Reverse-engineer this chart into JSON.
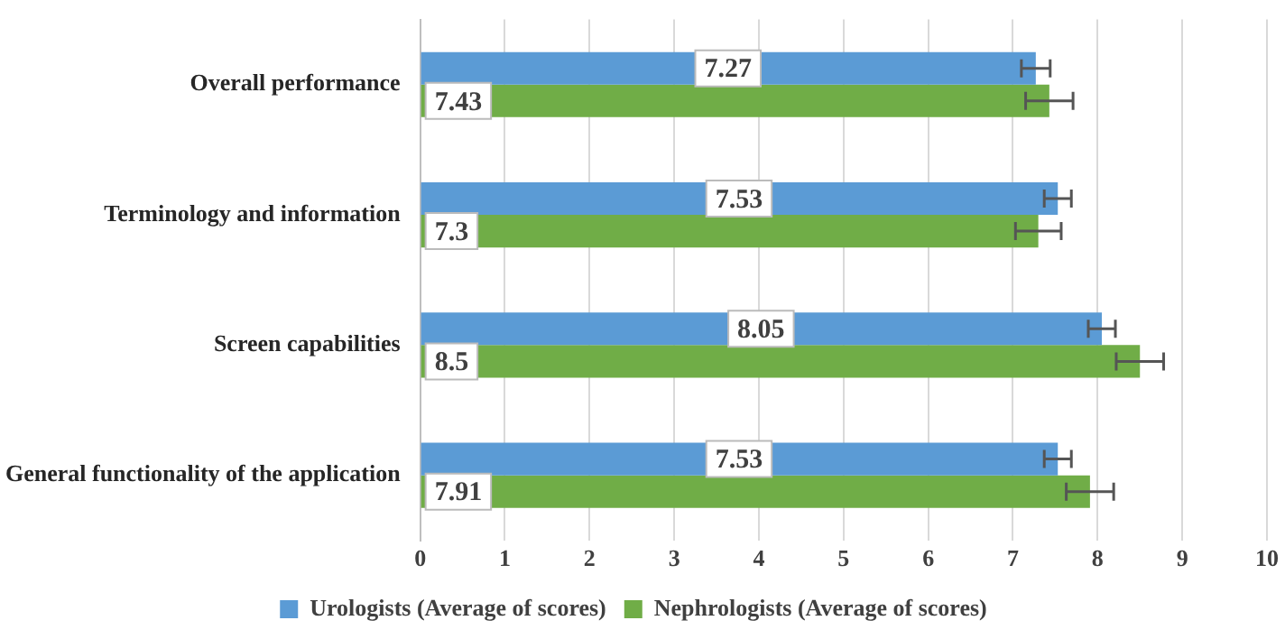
{
  "chart_data": {
    "type": "bar",
    "orientation": "horizontal",
    "categories": [
      "Overall performance",
      "Terminology and information",
      "Screen capabilities",
      "General functionality of the application"
    ],
    "series": [
      {
        "name": "Urologists (Average of scores)",
        "color": "#5b9bd5",
        "values": [
          7.27,
          7.53,
          8.05,
          7.53
        ],
        "errors": [
          0.17,
          0.16,
          0.16,
          0.16
        ]
      },
      {
        "name": "Nephrologists (Average of scores)",
        "color": "#70ad47",
        "values": [
          7.43,
          7.3,
          8.5,
          7.91
        ],
        "errors": [
          0.28,
          0.27,
          0.28,
          0.28
        ]
      }
    ],
    "xlim": [
      0,
      10
    ],
    "xticks": [
      0,
      1,
      2,
      3,
      4,
      5,
      6,
      7,
      8,
      9,
      10
    ],
    "grid": "x",
    "legend": "bottom",
    "data_labels": true
  }
}
